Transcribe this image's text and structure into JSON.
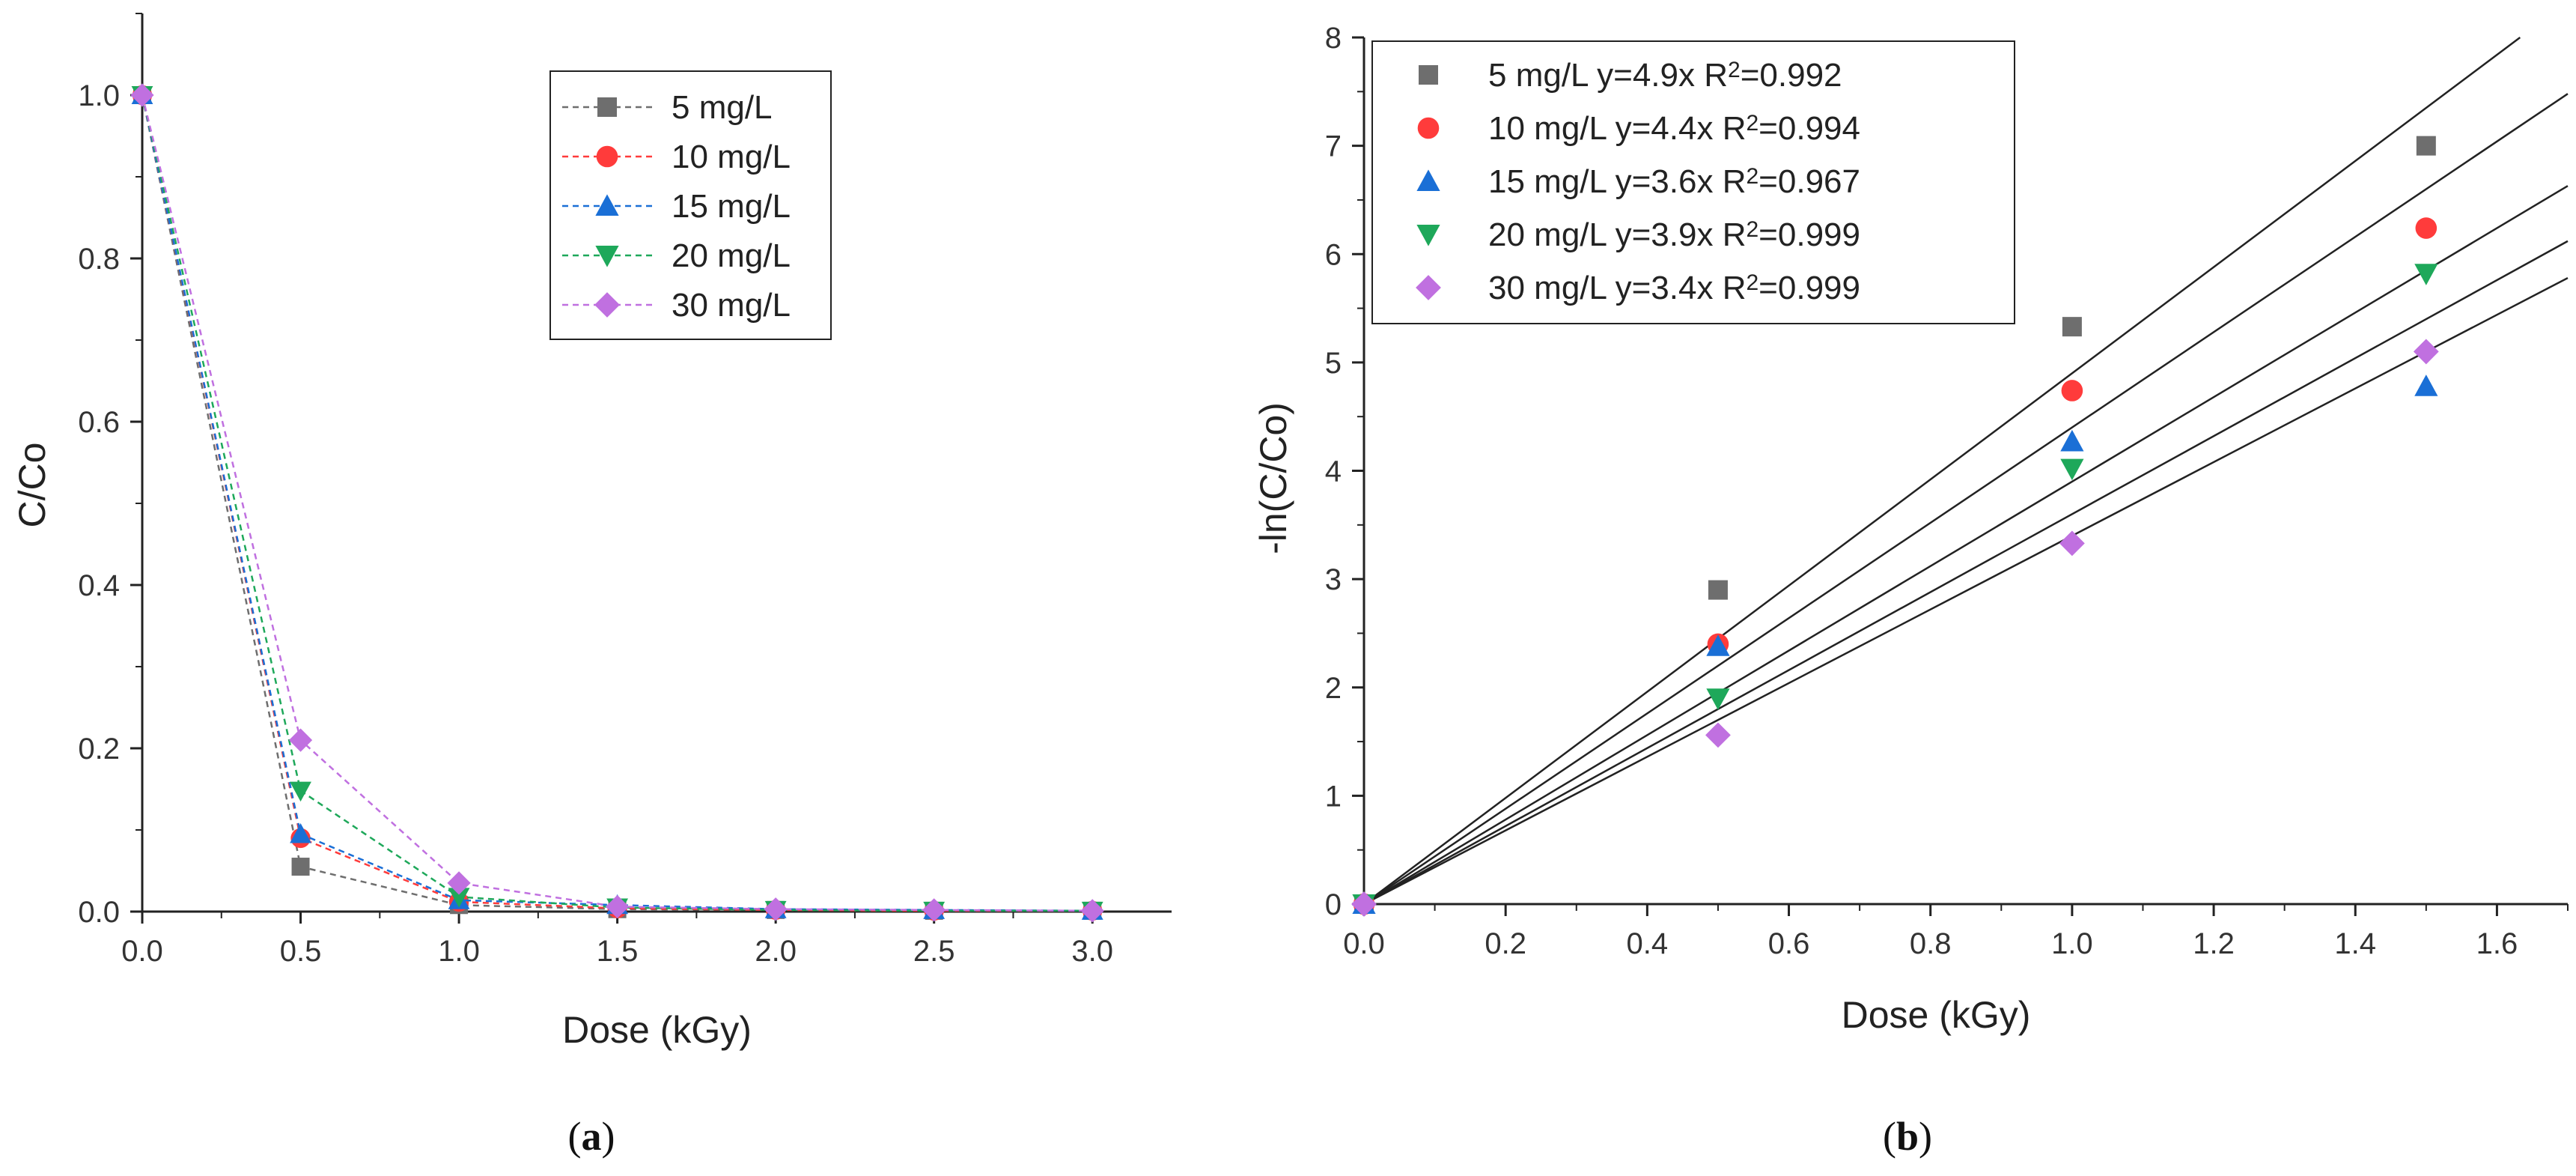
{
  "chart_data": [
    {
      "type": "line",
      "panel_label": "a",
      "xlabel": "Dose (kGy)",
      "ylabel": "C/Co",
      "xlim": [
        0,
        3.25
      ],
      "ylim": [
        0,
        1.1
      ],
      "xticks": [
        "0.0",
        "0.5",
        "1.0",
        "1.5",
        "2.0",
        "2.5",
        "3.0"
      ],
      "yticks": [
        "0.0",
        "0.2",
        "0.4",
        "0.6",
        "0.8",
        "1.0"
      ],
      "legend_position": "top-right",
      "x": [
        0,
        0.5,
        1.0,
        1.5,
        2.0,
        2.5,
        3.0
      ],
      "series": [
        {
          "name": "5 mg/L",
          "values": [
            1.0,
            0.055,
            0.008,
            0.003,
            0.002,
            0.001,
            0.001
          ],
          "color": "#6e6e6e",
          "marker": "square"
        },
        {
          "name": "10 mg/L",
          "values": [
            1.0,
            0.09,
            0.012,
            0.004,
            0.002,
            0.001,
            0.001
          ],
          "color": "#ff3b3b",
          "marker": "circle"
        },
        {
          "name": "15 mg/L",
          "values": [
            1.0,
            0.095,
            0.014,
            0.008,
            0.003,
            0.002,
            0.001
          ],
          "color": "#1a6fd6",
          "marker": "triangle-up"
        },
        {
          "name": "20 mg/L",
          "values": [
            1.0,
            0.148,
            0.018,
            0.005,
            0.002,
            0.001,
            0.001
          ],
          "color": "#1ea85a",
          "marker": "triangle-down"
        },
        {
          "name": "30 mg/L",
          "values": [
            1.0,
            0.21,
            0.035,
            0.006,
            0.003,
            0.002,
            0.001
          ],
          "color": "#c070e0",
          "marker": "diamond"
        }
      ]
    },
    {
      "type": "scatter",
      "panel_label": "b",
      "xlabel": "Dose (kGy)",
      "ylabel": "-ln(C/Co)",
      "xlim": [
        0,
        1.7
      ],
      "ylim": [
        0,
        8
      ],
      "xticks": [
        "0.0",
        "0.2",
        "0.4",
        "0.6",
        "0.8",
        "1.0",
        "1.2",
        "1.4",
        "1.6"
      ],
      "yticks": [
        "0",
        "1",
        "2",
        "3",
        "4",
        "5",
        "6",
        "7",
        "8"
      ],
      "legend_position": "top-left",
      "x": [
        0,
        0.5,
        1.0,
        1.5
      ],
      "series": [
        {
          "name": "5 mg/L",
          "fit": "y=4.9x",
          "r2_label": "R",
          "r2_sup": "2",
          "r2_value": "=0.992",
          "slope": 4.9,
          "values": [
            0,
            2.9,
            5.33,
            7.0
          ],
          "color": "#6e6e6e",
          "marker": "square"
        },
        {
          "name": "10 mg/L",
          "fit": "y=4.4x",
          "r2_label": "R",
          "r2_sup": "2",
          "r2_value": "=0.994",
          "slope": 4.4,
          "values": [
            0,
            2.4,
            4.74,
            6.24
          ],
          "color": "#ff3b3b",
          "marker": "circle"
        },
        {
          "name": "15 mg/L",
          "fit": "y=3.6x",
          "r2_label": "R",
          "r2_sup": "2",
          "r2_value": "=0.967",
          "slope": 3.6,
          "values": [
            0,
            2.38,
            4.27,
            4.78
          ],
          "color": "#1a6fd6",
          "marker": "triangle-up"
        },
        {
          "name": "20 mg/L",
          "fit": "y=3.9x",
          "r2_label": "R",
          "r2_sup": "2",
          "r2_value": "=0.999",
          "slope": 3.9,
          "values": [
            0,
            1.9,
            4.02,
            5.82
          ],
          "color": "#1ea85a",
          "marker": "triangle-down"
        },
        {
          "name": "30 mg/L",
          "fit": "y=3.4x",
          "r2_label": "R",
          "r2_sup": "2",
          "r2_value": "=0.999",
          "slope": 3.4,
          "values": [
            0,
            1.56,
            3.33,
            5.1
          ],
          "color": "#c070e0",
          "marker": "diamond"
        }
      ]
    }
  ]
}
